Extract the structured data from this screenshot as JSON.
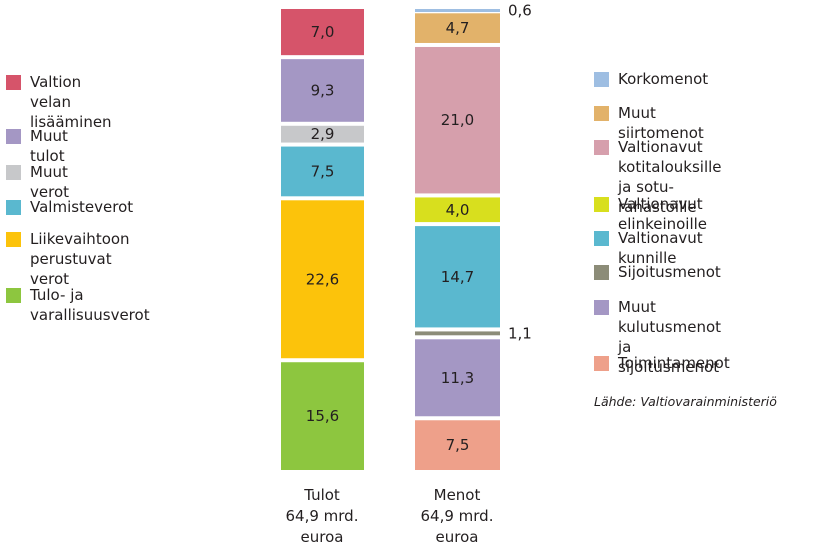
{
  "chart_data": {
    "type": "bar",
    "stacked": true,
    "categories": [
      "Tulot\n64,9 mrd.\neuroa",
      "Menot\n64,9 mrd.\neuroa"
    ],
    "total": 64.9,
    "tulot": {
      "segments": [
        {
          "name": "Valtion velan\nlisääminen",
          "value": 7.0,
          "label": "7,0",
          "color": "#d6546a"
        },
        {
          "name": "Muut tulot",
          "value": 9.3,
          "label": "9,3",
          "color": "#a497c4"
        },
        {
          "name": "Muut verot",
          "value": 2.9,
          "label": "2,9",
          "color": "#c7c8ca"
        },
        {
          "name": "Valmisteverot",
          "value": 7.5,
          "label": "7,5",
          "color": "#5ab8cf"
        },
        {
          "name": "Liikevaihtoon\nperustuvat verot",
          "value": 22.6,
          "label": "22,6",
          "color": "#fcc30b"
        },
        {
          "name": "Tulo- ja varallisuusverot",
          "value": 15.6,
          "label": "15,6",
          "color": "#8dc63f"
        }
      ]
    },
    "menot": {
      "segments": [
        {
          "name": "Korkomenot",
          "value": 0.6,
          "label": "0,6",
          "outside": true,
          "color": "#9ebee2"
        },
        {
          "name": "Muut siirtomenot",
          "value": 4.7,
          "label": "4,7",
          "color": "#e2b26a"
        },
        {
          "name": "Valtionavut kotitalouksille\nja sotu-rahastoille",
          "value": 21.0,
          "label": "21,0",
          "color": "#d69fac"
        },
        {
          "name": "Valtionavut elinkeinoille",
          "value": 4.0,
          "label": "4,0",
          "color": "#d8df1e"
        },
        {
          "name": "Valtionavut kunnille",
          "value": 14.7,
          "label": "14,7",
          "color": "#5ab8cf"
        },
        {
          "name": "Sijoitusmenot",
          "value": 1.1,
          "label": "1,1",
          "outside": true,
          "color": "#8c8c78"
        },
        {
          "name": "Muut kulutusmenot\nja sijoitusmenot",
          "value": 11.3,
          "label": "11,3",
          "color": "#a497c4"
        },
        {
          "name": "Toimintamenot",
          "value": 7.5,
          "label": "7,5",
          "color": "#eea08a"
        }
      ]
    }
  },
  "legend_left": [
    {
      "label": "Valtion velan\nlisääminen",
      "color": "#d6546a"
    },
    {
      "label": "Muut tulot",
      "color": "#a497c4"
    },
    {
      "label": "Muut verot",
      "color": "#c7c8ca"
    },
    {
      "label": "Valmisteverot",
      "color": "#5ab8cf"
    },
    {
      "label": "Liikevaihtoon\nperustuvat verot",
      "color": "#fcc30b"
    },
    {
      "label": "Tulo- ja varallisuusverot",
      "color": "#8dc63f"
    }
  ],
  "legend_right": [
    {
      "label": "Korkomenot",
      "color": "#9ebee2"
    },
    {
      "label": "Muut siirtomenot",
      "color": "#e2b26a"
    },
    {
      "label": "Valtionavut kotitalouksille\nja sotu-rahastoille",
      "color": "#d69fac"
    },
    {
      "label": "Valtionavut elinkeinoille",
      "color": "#d8df1e"
    },
    {
      "label": "Valtionavut kunnille",
      "color": "#5ab8cf"
    },
    {
      "label": "Sijoitusmenot",
      "color": "#8c8c78"
    },
    {
      "label": "Muut kulutusmenot\nja sijoitusmenot",
      "color": "#a497c4"
    },
    {
      "label": "Toimintamenot",
      "color": "#eea08a"
    }
  ],
  "source": "Lähde: Valtiovarainministeriö"
}
